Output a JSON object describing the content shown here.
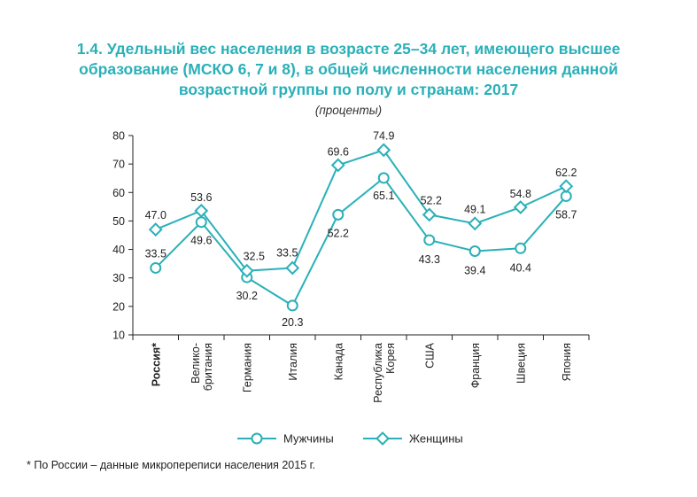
{
  "header": {
    "title_lines": [
      "1.4. Удельный вес населения в возрасте 25–34 лет, имеющего высшее",
      "образование (МСКО 6, 7 и 8), в общей численности населения данной",
      "возрастной группы  по полу и странам: 2017"
    ],
    "subtitle": "(проценты)"
  },
  "footnote": "* По России – данные микропереписи населения 2015 г.",
  "colors": {
    "accent": "#2ab0b8",
    "text": "#222222"
  },
  "chart_data": {
    "type": "line",
    "categories": [
      [
        "Россия*"
      ],
      [
        "Велико-",
        "британия"
      ],
      [
        "Германия"
      ],
      [
        "Италия"
      ],
      [
        "Канада"
      ],
      [
        "Республика",
        "Корея"
      ],
      [
        "США"
      ],
      [
        "Франция"
      ],
      [
        "Швеция"
      ],
      [
        "Япония"
      ]
    ],
    "bold_category_index": 0,
    "ylim": [
      10,
      80
    ],
    "yticks": [
      10,
      20,
      30,
      40,
      50,
      60,
      70,
      80
    ],
    "series": [
      {
        "name": "Мужчины",
        "marker": "circle",
        "values": [
          33.5,
          49.6,
          30.2,
          20.3,
          52.2,
          65.1,
          43.3,
          39.4,
          40.4,
          58.7
        ],
        "labels": [
          "33.5",
          "49.6",
          "30.2",
          "20.3",
          "52.2",
          "65.1",
          "43.3",
          "39.4",
          "40.4",
          "58.7"
        ]
      },
      {
        "name": "Женщины",
        "marker": "diamond",
        "values": [
          47.0,
          53.6,
          32.5,
          33.5,
          69.6,
          74.9,
          52.2,
          49.1,
          54.8,
          62.2
        ],
        "labels": [
          "47.0",
          "53.6",
          "32.5",
          "33.5",
          "69.6",
          "74.9",
          "52.2",
          "49.1",
          "54.8",
          "62.2"
        ]
      }
    ],
    "legend_position": "bottom-center",
    "grid": false
  }
}
